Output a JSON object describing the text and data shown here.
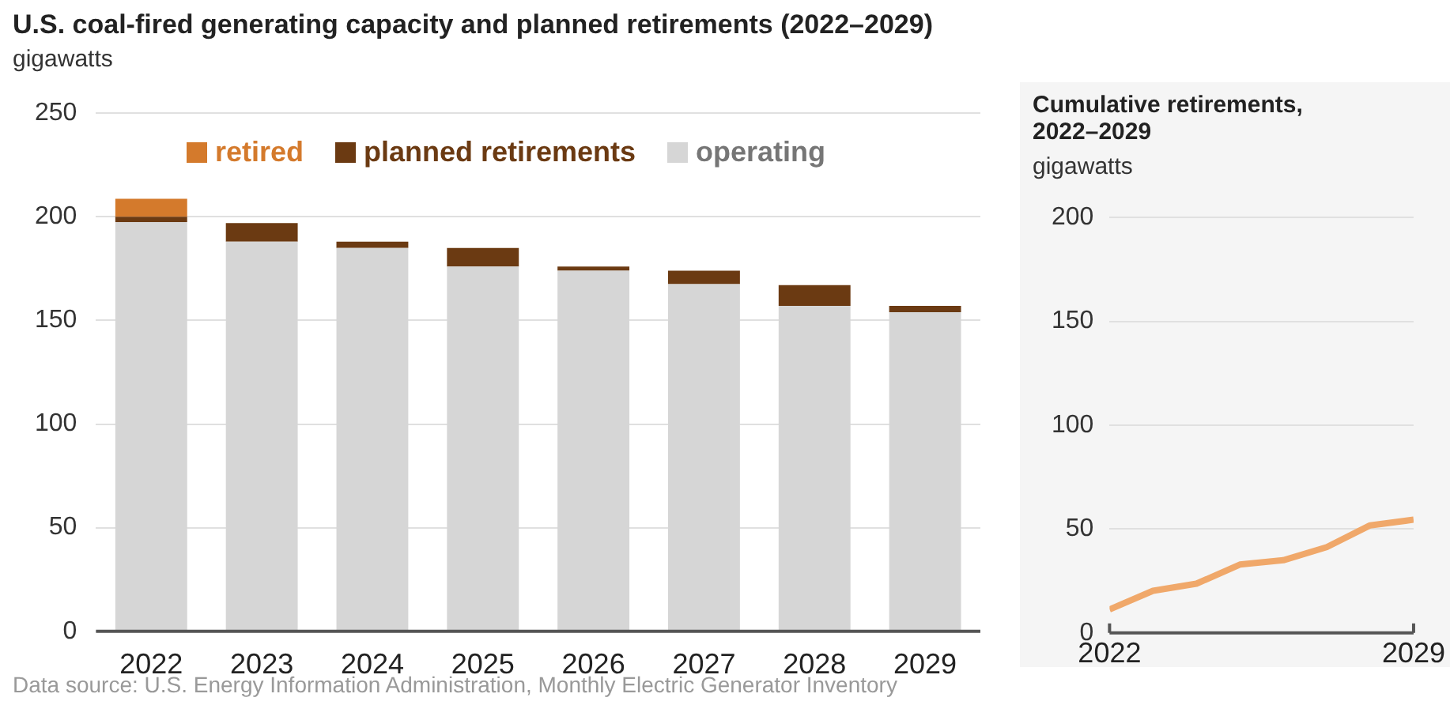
{
  "chart_data": [
    {
      "type": "bar",
      "title": "U.S. coal-fired generating capacity and planned retirements (2022–2029)",
      "ylabel": "gigawatts",
      "categories": [
        "2022",
        "2023",
        "2024",
        "2025",
        "2026",
        "2027",
        "2028",
        "2029"
      ],
      "stacked": true,
      "series": [
        {
          "name": "operating",
          "color": "#d6d6d6",
          "values": [
            197.5,
            188,
            185,
            176,
            174,
            167.5,
            157,
            154
          ]
        },
        {
          "name": "planned retirements",
          "color": "#6b3a12",
          "values": [
            2.5,
            9,
            3,
            9,
            2,
            6.5,
            10,
            3
          ]
        },
        {
          "name": "retired",
          "color": "#d47a2c",
          "values": [
            8.7,
            null,
            null,
            null,
            null,
            null,
            null,
            null
          ]
        }
      ],
      "ylim": [
        0,
        250
      ],
      "yticks": [
        0,
        50,
        100,
        150,
        200,
        250
      ],
      "grid": "y",
      "legend": "top",
      "annotations": [
        "Data source: U.S. Energy Information Administration, Monthly Electric Generator Inventory"
      ]
    },
    {
      "type": "line",
      "title": "Cumulative retirements, 2022–2029",
      "ylabel": "gigawatts",
      "x": [
        2022,
        2023,
        2024,
        2025,
        2026,
        2027,
        2028,
        2029
      ],
      "series": [
        {
          "color": "#f0a86a",
          "values": [
            11.3,
            20.3,
            23.7,
            32.9,
            35,
            41.3,
            51.8,
            54.5
          ]
        }
      ],
      "xlim": [
        2022,
        2029
      ],
      "xticks": [
        2022,
        2029
      ],
      "ylim": [
        0,
        200
      ],
      "yticks": [
        0,
        50,
        100,
        150,
        200
      ],
      "grid": "y",
      "legend": false
    }
  ]
}
